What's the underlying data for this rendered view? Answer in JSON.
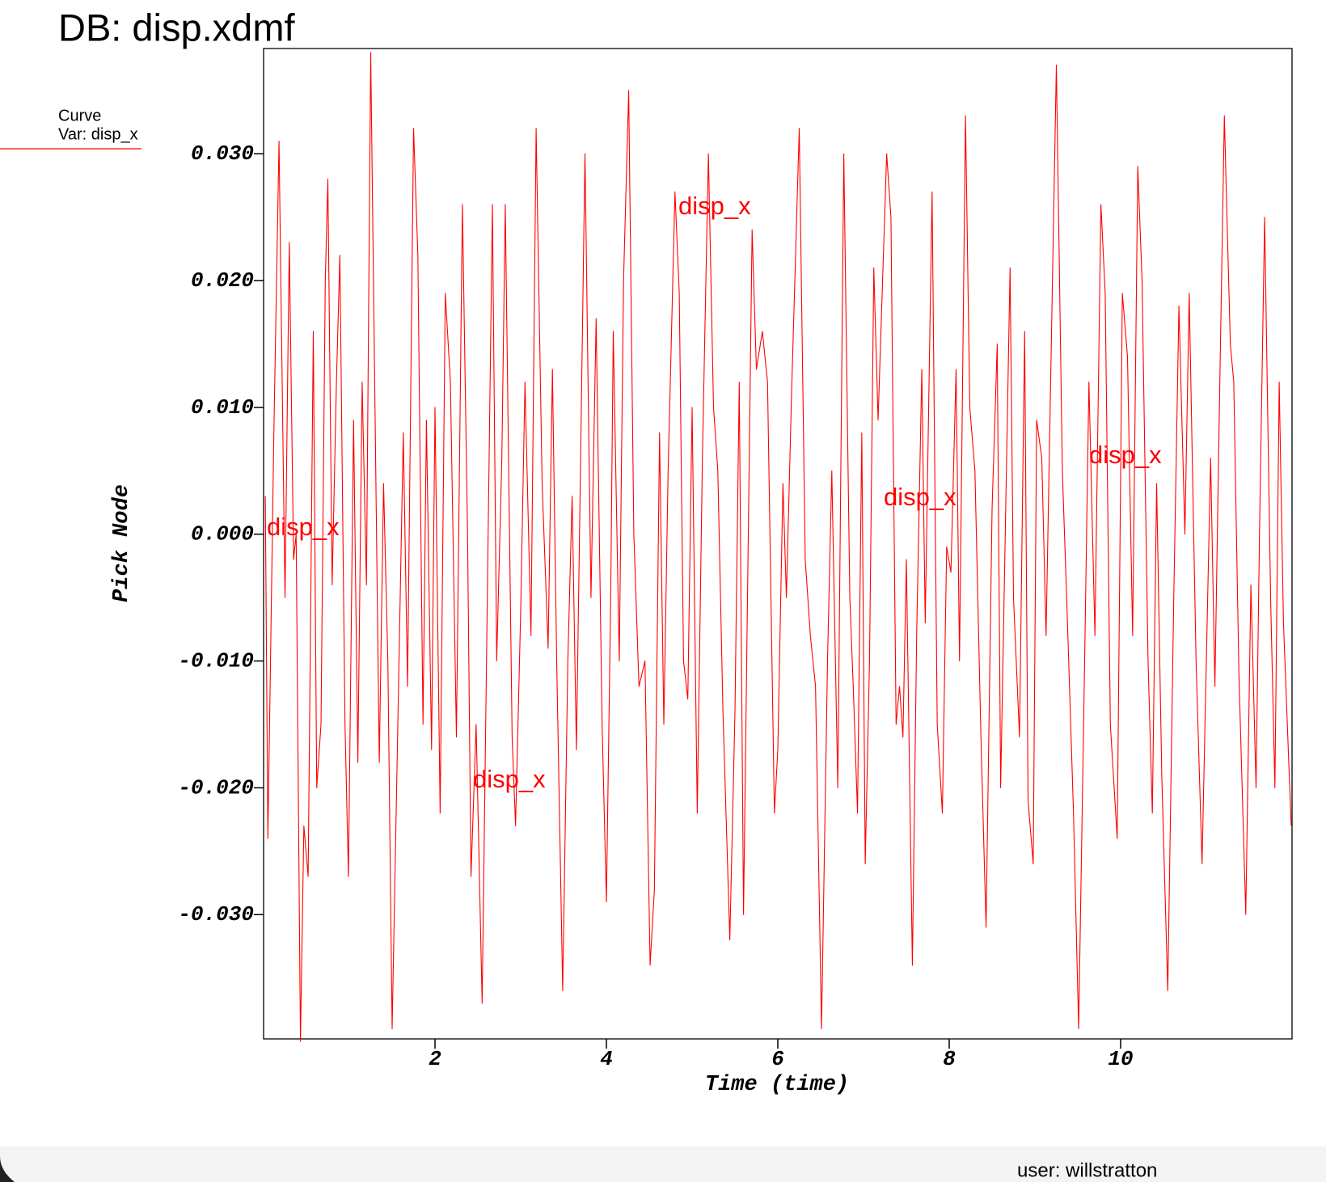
{
  "chart_data": {
    "type": "line",
    "title": "DB: disp.xdmf",
    "legend_title": "Curve",
    "x_label": "Time (time)",
    "y_label": "Pick Node",
    "footer": "user: willstratton",
    "curve_labels": [
      "disp_x",
      "disp_x",
      "disp_x",
      "disp_x",
      "disp_x"
    ],
    "xlim": [
      0,
      12
    ],
    "ylim": [
      -0.0398,
      0.0383
    ],
    "xticks": [
      2,
      4,
      6,
      8,
      10
    ],
    "yticks": [
      {
        "value": -0.03,
        "label": "-0.030"
      },
      {
        "value": -0.02,
        "label": "-0.020"
      },
      {
        "value": -0.01,
        "label": "-0.010"
      },
      {
        "value": 0,
        "label": "0.000"
      },
      {
        "value": 0.01,
        "label": "0.010"
      },
      {
        "value": 0.02,
        "label": "0.020"
      },
      {
        "value": 0.03,
        "label": "0.030"
      }
    ],
    "grid": false,
    "x": [
      0.02,
      0.05,
      0.12,
      0.18,
      0.25,
      0.3,
      0.35,
      0.38,
      0.43,
      0.47,
      0.52,
      0.58,
      0.62,
      0.67,
      0.72,
      0.75,
      0.8,
      0.85,
      0.89,
      0.95,
      0.99,
      1.05,
      1.1,
      1.15,
      1.2,
      1.25,
      1.3,
      1.35,
      1.4,
      1.45,
      1.5,
      1.58,
      1.63,
      1.68,
      1.75,
      1.8,
      1.86,
      1.9,
      1.96,
      2.0,
      2.06,
      2.12,
      2.18,
      2.25,
      2.32,
      2.38,
      2.42,
      2.48,
      2.55,
      2.62,
      2.67,
      2.72,
      2.78,
      2.82,
      2.9,
      2.94,
      3.0,
      3.05,
      3.12,
      3.18,
      3.25,
      3.32,
      3.37,
      3.42,
      3.49,
      3.55,
      3.6,
      3.65,
      3.75,
      3.82,
      3.88,
      3.95,
      4.0,
      4.05,
      4.08,
      4.15,
      4.2,
      4.26,
      4.32,
      4.38,
      4.45,
      4.51,
      4.56,
      4.62,
      4.67,
      4.72,
      4.8,
      4.85,
      4.9,
      4.95,
      5.0,
      5.06,
      5.12,
      5.19,
      5.25,
      5.3,
      5.36,
      5.44,
      5.5,
      5.55,
      5.6,
      5.7,
      5.75,
      5.82,
      5.88,
      5.96,
      6.0,
      6.06,
      6.1,
      6.16,
      6.25,
      6.32,
      6.38,
      6.44,
      6.51,
      6.58,
      6.63,
      6.7,
      6.77,
      6.84,
      6.88,
      6.93,
      6.98,
      7.02,
      7.07,
      7.12,
      7.17,
      7.27,
      7.32,
      7.38,
      7.42,
      7.46,
      7.5,
      7.57,
      7.62,
      7.68,
      7.72,
      7.8,
      7.86,
      7.92,
      7.97,
      8.02,
      8.08,
      8.12,
      8.19,
      8.24,
      8.3,
      8.37,
      8.43,
      8.5,
      8.56,
      8.6,
      8.71,
      8.75,
      8.82,
      8.88,
      8.92,
      8.98,
      9.02,
      9.08,
      9.13,
      9.25,
      9.32,
      9.38,
      9.45,
      9.51,
      9.58,
      9.63,
      9.7,
      9.77,
      9.82,
      9.88,
      9.96,
      10.02,
      10.08,
      10.14,
      10.2,
      10.25,
      10.32,
      10.37,
      10.42,
      10.48,
      10.55,
      10.62,
      10.68,
      10.75,
      10.8,
      10.88,
      10.95,
      11.05,
      11.1,
      11.15,
      11.21,
      11.28,
      11.32,
      11.38,
      11.46,
      11.52,
      11.58,
      11.62,
      11.68,
      11.75,
      11.8,
      11.85,
      11.9,
      11.99
    ],
    "series": [
      {
        "name": "Var: disp_x",
        "color": "#ff0000",
        "values": [
          0.003,
          -0.024,
          0.008,
          0.031,
          -0.005,
          0.023,
          -0.002,
          0.0,
          -0.04,
          -0.023,
          -0.027,
          0.016,
          -0.02,
          -0.015,
          0.02,
          0.028,
          -0.004,
          0.012,
          0.022,
          -0.015,
          -0.027,
          0.009,
          -0.018,
          0.012,
          -0.004,
          0.038,
          0.01,
          -0.018,
          0.004,
          -0.01,
          -0.039,
          -0.01,
          0.008,
          -0.012,
          0.032,
          0.022,
          -0.015,
          0.009,
          -0.017,
          0.01,
          -0.022,
          0.019,
          0.012,
          -0.016,
          0.026,
          0.0,
          -0.027,
          -0.015,
          -0.037,
          0.0,
          0.026,
          -0.01,
          0.006,
          0.026,
          -0.016,
          -0.023,
          -0.006,
          0.012,
          -0.008,
          0.032,
          0.004,
          -0.009,
          0.013,
          -0.01,
          -0.036,
          -0.01,
          0.003,
          -0.017,
          0.03,
          -0.005,
          0.017,
          -0.015,
          -0.029,
          -0.005,
          0.016,
          -0.01,
          0.02,
          0.035,
          0.0,
          -0.012,
          -0.01,
          -0.034,
          -0.028,
          0.008,
          -0.015,
          0.005,
          0.027,
          0.019,
          -0.01,
          -0.013,
          0.01,
          -0.022,
          0.006,
          0.03,
          0.01,
          0.005,
          -0.014,
          -0.032,
          -0.014,
          0.012,
          -0.03,
          0.024,
          0.013,
          0.016,
          0.012,
          -0.022,
          -0.017,
          0.004,
          -0.005,
          0.011,
          0.032,
          -0.002,
          -0.008,
          -0.012,
          -0.039,
          -0.01,
          0.005,
          -0.02,
          0.03,
          -0.005,
          -0.012,
          -0.022,
          0.008,
          -0.026,
          -0.01,
          0.021,
          0.009,
          0.03,
          0.025,
          -0.015,
          -0.012,
          -0.016,
          -0.002,
          -0.034,
          -0.008,
          0.013,
          -0.007,
          0.027,
          -0.015,
          -0.022,
          -0.001,
          -0.003,
          0.013,
          -0.01,
          0.033,
          0.01,
          0.005,
          -0.016,
          -0.031,
          0.002,
          0.015,
          -0.02,
          0.021,
          -0.005,
          -0.016,
          0.016,
          -0.021,
          -0.026,
          0.009,
          0.006,
          -0.008,
          0.037,
          0.005,
          -0.007,
          -0.022,
          -0.039,
          -0.01,
          0.012,
          -0.008,
          0.026,
          0.019,
          -0.015,
          -0.024,
          0.019,
          0.014,
          -0.008,
          0.029,
          0.02,
          -0.01,
          -0.022,
          0.004,
          -0.019,
          -0.036,
          -0.005,
          0.018,
          0.0,
          0.019,
          -0.01,
          -0.026,
          0.006,
          -0.012,
          0.009,
          0.033,
          0.015,
          0.012,
          -0.011,
          -0.03,
          -0.004,
          -0.02,
          0.0,
          0.025,
          -0.005,
          -0.02,
          0.012,
          -0.007,
          -0.023
        ]
      }
    ]
  }
}
